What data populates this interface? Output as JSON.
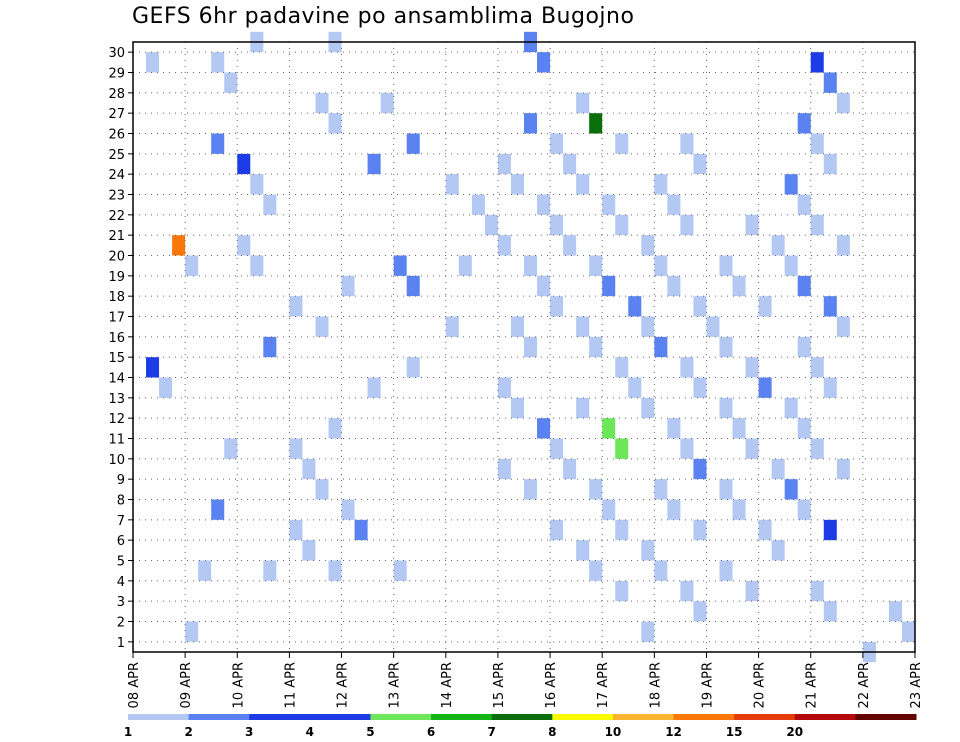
{
  "chart_data": {
    "type": "heatmap",
    "title": "GEFS 6hr padavine po ansamblima Bugojno",
    "x_tick_labels": [
      "08 APR",
      "09 APR",
      "10 APR",
      "11 APR",
      "12 APR",
      "13 APR",
      "14 APR",
      "15 APR",
      "16 APR",
      "17 APR",
      "18 APR",
      "19 APR",
      "20 APR",
      "21 APR",
      "22 APR",
      "23 APR"
    ],
    "y_tick_labels": [
      "1",
      "2",
      "3",
      "4",
      "5",
      "6",
      "7",
      "8",
      "9",
      "10",
      "11",
      "12",
      "13",
      "14",
      "15",
      "16",
      "17",
      "18",
      "19",
      "20",
      "21",
      "22",
      "23",
      "24",
      "25",
      "26",
      "27",
      "28",
      "29",
      "30"
    ],
    "x_range": [
      0,
      15
    ],
    "y_range": [
      0,
      30
    ],
    "time_step_hours": 6,
    "grid": true,
    "legend": {
      "placement": "bottom",
      "labels": [
        "1",
        "2",
        "3",
        "4",
        "5",
        "6",
        "7",
        "8",
        "10",
        "12",
        "15",
        "20"
      ],
      "colors": [
        "#b4c8f4",
        "#5a82f0",
        "#1e3ce6",
        "#1e3ce6",
        "#6ee65a",
        "#14b414",
        "#0a6e0a",
        "#fafa00",
        "#fab432",
        "#fa780a",
        "#e63c0a",
        "#b40a0a",
        "#640000"
      ]
    },
    "cells": [
      [
        0,
        1,
        0
      ],
      [
        0,
        4,
        0
      ],
      [
        0,
        13,
        0
      ],
      [
        0,
        14,
        3
      ],
      [
        0,
        19,
        13
      ],
      [
        0,
        20,
        9
      ],
      [
        0,
        19,
        12
      ],
      [
        0,
        29,
        0
      ],
      [
        1,
        4,
        0
      ],
      [
        1,
        7,
        1
      ],
      [
        1,
        10,
        0
      ],
      [
        1,
        15,
        1
      ],
      [
        1,
        19,
        0
      ],
      [
        1,
        20,
        0
      ],
      [
        1,
        22,
        0
      ],
      [
        1,
        23,
        0
      ],
      [
        1,
        24,
        3
      ],
      [
        1,
        25,
        1
      ],
      [
        1,
        28,
        0
      ],
      [
        1,
        29,
        0
      ],
      [
        1,
        30,
        0
      ],
      [
        2,
        4,
        0
      ],
      [
        2,
        5,
        0
      ],
      [
        2,
        6,
        0
      ],
      [
        2,
        7,
        0
      ],
      [
        2,
        8,
        0
      ],
      [
        2,
        9,
        0
      ],
      [
        2,
        10,
        0
      ],
      [
        2,
        11,
        0
      ],
      [
        2,
        16,
        0
      ],
      [
        2,
        17,
        0
      ],
      [
        2,
        18,
        0
      ],
      [
        2,
        26,
        0
      ],
      [
        2,
        27,
        0
      ],
      [
        2,
        30,
        0
      ],
      [
        3,
        13,
        0
      ],
      [
        3,
        14,
        0
      ],
      [
        3,
        18,
        1
      ],
      [
        3,
        19,
        1
      ],
      [
        3,
        4,
        0
      ],
      [
        3,
        6,
        1
      ],
      [
        3,
        24,
        1
      ],
      [
        3,
        25,
        1
      ],
      [
        3,
        27,
        0
      ],
      [
        4,
        16,
        0
      ],
      [
        4,
        19,
        0
      ],
      [
        4,
        21,
        0
      ],
      [
        4,
        22,
        0
      ],
      [
        4,
        23,
        0
      ],
      [
        5,
        6,
        0
      ],
      [
        5,
        8,
        0
      ],
      [
        5,
        9,
        0
      ],
      [
        5,
        10,
        0
      ],
      [
        5,
        11,
        1
      ],
      [
        5,
        12,
        0
      ],
      [
        5,
        13,
        0
      ],
      [
        5,
        15,
        0
      ],
      [
        5,
        16,
        0
      ],
      [
        5,
        17,
        0
      ],
      [
        5,
        18,
        0
      ],
      [
        5,
        19,
        0
      ],
      [
        5,
        20,
        0
      ],
      [
        5,
        21,
        0
      ],
      [
        5,
        22,
        0
      ],
      [
        5,
        23,
        0
      ],
      [
        5,
        24,
        0
      ],
      [
        5,
        25,
        0
      ],
      [
        5,
        26,
        1
      ],
      [
        5,
        29,
        1
      ],
      [
        5,
        30,
        1
      ],
      [
        6,
        10,
        4
      ],
      [
        6,
        11,
        4
      ],
      [
        6,
        12,
        0
      ],
      [
        6,
        13,
        0
      ],
      [
        6,
        14,
        0
      ],
      [
        6,
        15,
        0
      ],
      [
        6,
        16,
        0
      ],
      [
        6,
        17,
        1
      ],
      [
        6,
        18,
        1
      ],
      [
        6,
        19,
        0
      ],
      [
        6,
        20,
        0
      ],
      [
        6,
        21,
        0
      ],
      [
        6,
        22,
        0
      ],
      [
        6,
        23,
        0
      ],
      [
        6,
        24,
        0
      ],
      [
        6,
        25,
        0
      ],
      [
        6,
        26,
        6
      ],
      [
        6,
        27,
        0
      ],
      [
        6,
        3,
        0
      ],
      [
        6,
        4,
        0
      ],
      [
        6,
        5,
        0
      ],
      [
        6,
        6,
        0
      ],
      [
        6,
        7,
        0
      ],
      [
        6,
        8,
        0
      ],
      [
        6,
        9,
        0
      ],
      [
        7,
        1,
        0
      ],
      [
        7,
        2,
        0
      ],
      [
        7,
        3,
        0
      ],
      [
        7,
        4,
        0
      ],
      [
        7,
        5,
        0
      ],
      [
        7,
        6,
        0
      ],
      [
        7,
        7,
        0
      ],
      [
        7,
        8,
        0
      ],
      [
        7,
        9,
        1
      ],
      [
        7,
        10,
        0
      ],
      [
        7,
        11,
        0
      ],
      [
        7,
        12,
        0
      ],
      [
        7,
        13,
        0
      ],
      [
        7,
        14,
        0
      ],
      [
        7,
        15,
        1
      ],
      [
        7,
        16,
        0
      ],
      [
        7,
        17,
        0
      ],
      [
        7,
        18,
        0
      ],
      [
        7,
        19,
        0
      ],
      [
        7,
        20,
        0
      ],
      [
        7,
        21,
        0
      ],
      [
        7,
        22,
        0
      ],
      [
        7,
        23,
        0
      ],
      [
        7,
        24,
        0
      ],
      [
        7,
        25,
        0
      ],
      [
        8,
        3,
        0
      ],
      [
        8,
        4,
        0
      ],
      [
        8,
        5,
        0
      ],
      [
        8,
        6,
        0
      ],
      [
        8,
        7,
        0
      ],
      [
        8,
        8,
        0
      ],
      [
        8,
        9,
        0
      ],
      [
        8,
        10,
        0
      ],
      [
        8,
        11,
        0
      ],
      [
        8,
        12,
        0
      ],
      [
        8,
        13,
        1
      ],
      [
        8,
        14,
        0
      ],
      [
        8,
        15,
        0
      ],
      [
        8,
        16,
        0
      ],
      [
        8,
        17,
        0
      ],
      [
        8,
        18,
        0
      ],
      [
        8,
        19,
        0
      ],
      [
        8,
        20,
        0
      ],
      [
        8,
        21,
        0
      ],
      [
        9,
        2,
        0
      ],
      [
        9,
        3,
        0
      ],
      [
        9,
        6,
        2
      ],
      [
        9,
        7,
        0
      ],
      [
        9,
        8,
        1
      ],
      [
        9,
        9,
        0
      ],
      [
        9,
        10,
        0
      ],
      [
        9,
        11,
        0
      ],
      [
        9,
        12,
        0
      ],
      [
        9,
        13,
        0
      ],
      [
        9,
        14,
        0
      ],
      [
        9,
        15,
        0
      ],
      [
        9,
        16,
        0
      ],
      [
        9,
        17,
        1
      ],
      [
        9,
        18,
        1
      ],
      [
        9,
        19,
        0
      ],
      [
        9,
        20,
        0
      ],
      [
        9,
        21,
        0
      ],
      [
        9,
        22,
        0
      ],
      [
        9,
        23,
        1
      ],
      [
        9,
        24,
        0
      ],
      [
        9,
        25,
        0
      ],
      [
        9,
        26,
        1
      ],
      [
        9,
        27,
        0
      ],
      [
        9,
        28,
        1
      ],
      [
        9,
        29,
        2
      ],
      [
        10,
        0,
        0
      ],
      [
        10,
        1,
        0
      ],
      [
        10,
        2,
        0
      ]
    ]
  }
}
